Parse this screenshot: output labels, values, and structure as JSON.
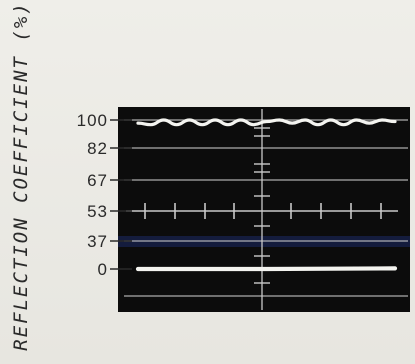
{
  "chart_data": {
    "type": "line",
    "title": "",
    "xlabel": "",
    "ylabel": "REFLECTION COEFFICIENT (%)",
    "y_ticks": [
      {
        "label": "100",
        "value": 100
      },
      {
        "label": "82",
        "value": 82
      },
      {
        "label": "67",
        "value": 67
      },
      {
        "label": "53",
        "value": 53
      },
      {
        "label": "37",
        "value": 37
      },
      {
        "label": "0",
        "value": 0
      }
    ],
    "series": [
      {
        "trace": "upper",
        "x": [
          0,
          0.05,
          0.1,
          0.15,
          0.2,
          0.25,
          0.3,
          0.35,
          0.4,
          0.45,
          0.5,
          0.55,
          0.6,
          0.65,
          0.7,
          0.75,
          0.8,
          0.85,
          0.9,
          0.95,
          1.0
        ],
        "values": [
          98,
          97,
          100,
          97,
          100,
          97,
          100,
          97,
          100,
          97,
          99,
          100,
          98,
          100,
          97,
          100,
          97,
          100,
          98,
          100,
          99
        ]
      },
      {
        "trace": "lower",
        "x": [
          0,
          0.25,
          0.5,
          0.75,
          1.0
        ],
        "values": [
          0,
          0,
          0,
          0.4,
          0.8
        ]
      }
    ],
    "grid": true,
    "colors": {
      "screen": "#0c0c0c",
      "grid": "#c9c9c9",
      "trace": "#f4f4f0",
      "highlight_band": "#1c2a66",
      "label": "#2a2a2a"
    }
  }
}
